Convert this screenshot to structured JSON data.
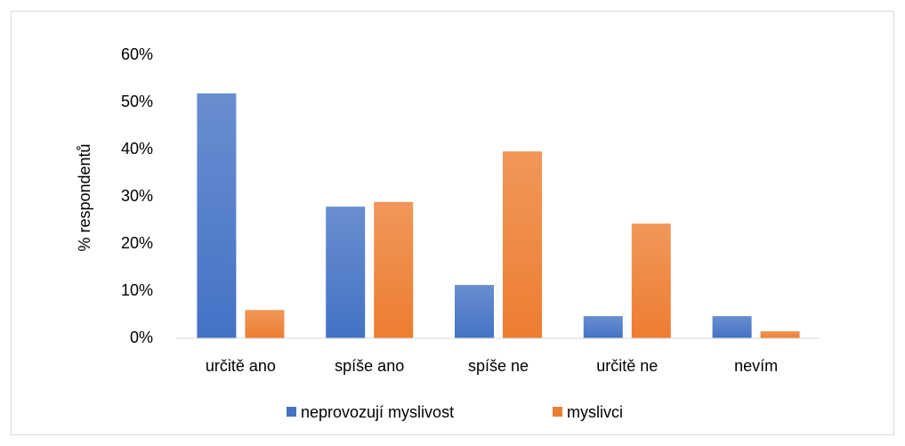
{
  "chart_data": {
    "type": "bar",
    "y_label": "% respondentů",
    "categories": [
      "určitě ano",
      "spíše ano",
      "spíše ne",
      "určitě ne",
      "nevím"
    ],
    "series": [
      {
        "name": "neprovozují myslivost",
        "color": "#4472c4",
        "values": [
          51.9,
          27.9,
          11.3,
          4.7,
          4.7
        ]
      },
      {
        "name": "myslivci",
        "color": "#ed7d31",
        "values": [
          6.0,
          28.9,
          39.6,
          24.3,
          1.5
        ]
      }
    ],
    "ylim": [
      0,
      60
    ],
    "yticks": [
      {
        "value": 0,
        "label": "0%"
      },
      {
        "value": 10,
        "label": "10%"
      },
      {
        "value": 20,
        "label": "20%"
      },
      {
        "value": 30,
        "label": "30%"
      },
      {
        "value": 40,
        "label": "40%"
      },
      {
        "value": 50,
        "label": "50%"
      },
      {
        "value": 60,
        "label": "60%"
      }
    ],
    "grid": false,
    "legend": "bottom"
  }
}
